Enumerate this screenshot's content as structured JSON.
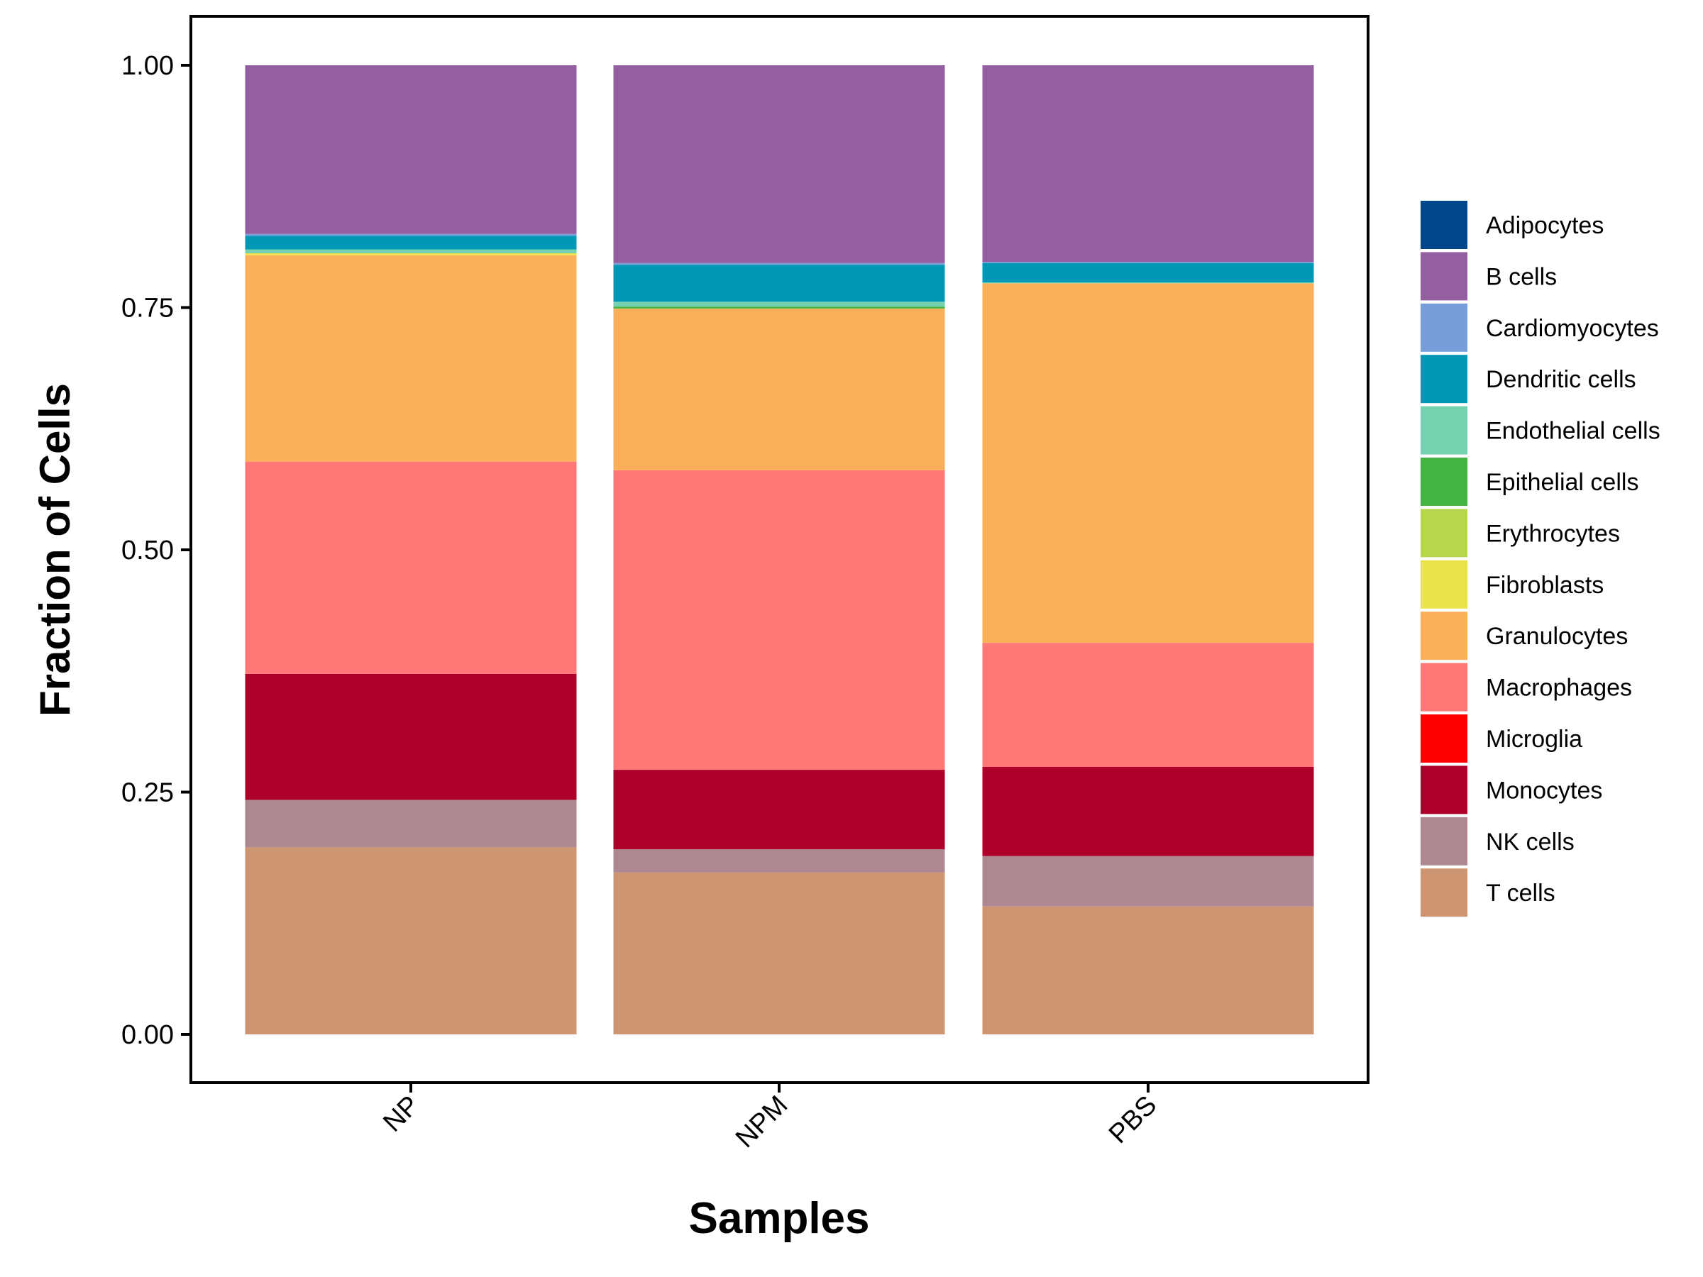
{
  "chart_data": {
    "type": "bar",
    "stacked": true,
    "title": "",
    "xlabel": "Samples",
    "ylabel": "Fraction of Cells",
    "ylim": [
      0,
      1
    ],
    "yticks": [
      0,
      0.25,
      0.5,
      0.75,
      1.0
    ],
    "ytick_labels": [
      "0.00",
      "0.25",
      "0.50",
      "0.75",
      "1.00"
    ],
    "categories": [
      "NP",
      "NPM",
      "PBS"
    ],
    "legend_position": "right",
    "grid": false,
    "series": [
      {
        "name": "T cells",
        "color": "#CE9573",
        "values": [
          0.193,
          0.167,
          0.132
        ]
      },
      {
        "name": "NK cells",
        "color": "#AE8890",
        "values": [
          0.049,
          0.024,
          0.052
        ]
      },
      {
        "name": "Monocytes",
        "color": "#AC002B",
        "values": [
          0.13,
          0.082,
          0.092
        ]
      },
      {
        "name": "Microglia",
        "color": "#FF0000",
        "values": [
          0.0,
          0.0,
          0.0
        ]
      },
      {
        "name": "Macrophages",
        "color": "#FF7777",
        "values": [
          0.219,
          0.309,
          0.128
        ]
      },
      {
        "name": "Granulocytes",
        "color": "#FAB05A",
        "values": [
          0.213,
          0.167,
          0.371
        ]
      },
      {
        "name": "Fibroblasts",
        "color": "#EAE34A",
        "values": [
          0.002,
          0.0,
          0.0
        ]
      },
      {
        "name": "Erythrocytes",
        "color": "#B8D54E",
        "values": [
          0.0,
          0.0,
          0.0
        ]
      },
      {
        "name": "Epithelial cells",
        "color": "#43B441",
        "values": [
          0.0,
          0.002,
          0.0
        ]
      },
      {
        "name": "Endothelial cells",
        "color": "#75D1B0",
        "values": [
          0.004,
          0.005,
          0.001
        ]
      },
      {
        "name": "Dendritic cells",
        "color": "#0098B4",
        "values": [
          0.014,
          0.038,
          0.02
        ]
      },
      {
        "name": "Cardiomyocytes",
        "color": "#779ED9",
        "values": [
          0.002,
          0.002,
          0.001
        ]
      },
      {
        "name": "B cells",
        "color": "#935FA0",
        "values": [
          0.174,
          0.204,
          0.203
        ]
      },
      {
        "name": "Adipocytes",
        "color": "#00468B",
        "values": [
          0.0,
          0.0,
          0.0
        ]
      }
    ],
    "legend_order": [
      "Adipocytes",
      "B cells",
      "Cardiomyocytes",
      "Dendritic cells",
      "Endothelial cells",
      "Epithelial cells",
      "Erythrocytes",
      "Fibroblasts",
      "Granulocytes",
      "Macrophages",
      "Microglia",
      "Monocytes",
      "NK cells",
      "T cells"
    ]
  }
}
